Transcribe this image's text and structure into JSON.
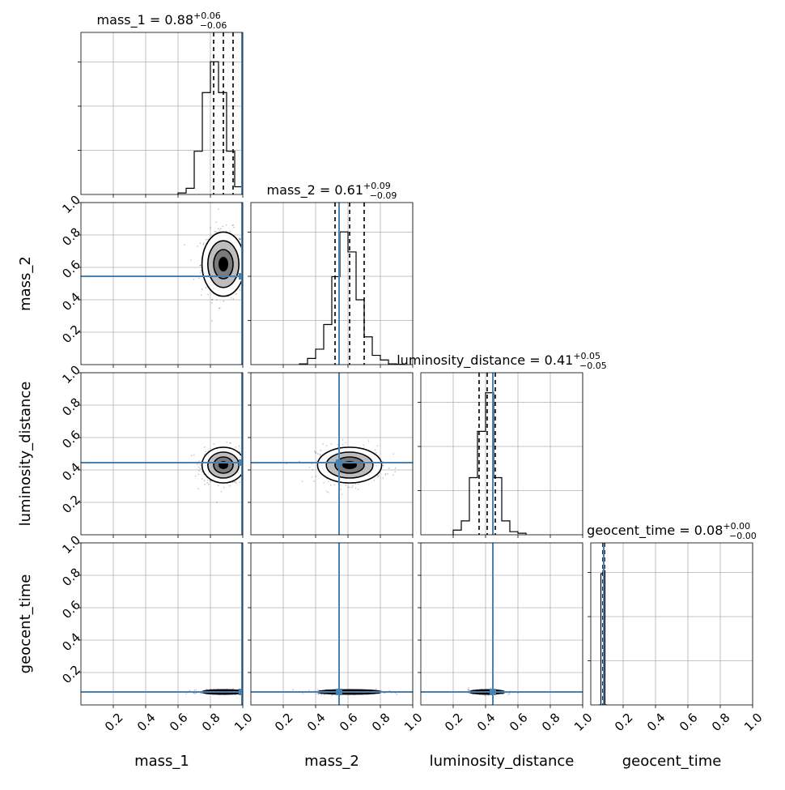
{
  "chart_data": {
    "type": "corner",
    "parameters": [
      "mass_1",
      "mass_2",
      "luminosity_distance",
      "geocent_time"
    ],
    "axis_labels": [
      "mass_1",
      "mass_2",
      "luminosity_distance",
      "geocent_time"
    ],
    "xlim": [
      0,
      1
    ],
    "ylim": [
      0,
      1
    ],
    "x_tick_labels": [
      "0.2",
      "0.4",
      "0.6",
      "0.8",
      "1.0"
    ],
    "y_tick_labels": [
      "0.2",
      "0.4",
      "0.6",
      "0.8",
      "1.0"
    ],
    "grid": true,
    "titles": [
      {
        "name": "mass_1",
        "median": "0.88",
        "plus": "+0.06",
        "minus": "−0.06"
      },
      {
        "name": "mass_2",
        "median": "0.61",
        "plus": "+0.09",
        "minus": "−0.09"
      },
      {
        "name": "luminosity_distance",
        "median": "0.41",
        "plus": "+0.05",
        "minus": "−0.05"
      },
      {
        "name": "geocent_time",
        "median": "0.08",
        "plus": "+0.00",
        "minus": "−0.00"
      }
    ],
    "quantiles": [
      [
        0.82,
        0.88,
        0.94
      ],
      [
        0.52,
        0.61,
        0.7
      ],
      [
        0.36,
        0.41,
        0.46
      ],
      [
        0.075,
        0.08,
        0.085
      ]
    ],
    "truths": [
      0.995,
      0.545,
      0.445,
      0.08
    ],
    "truth_color": "#4682b4",
    "histograms": [
      {
        "range": [
          0.6,
          1.0
        ],
        "counts": [
          0.01,
          0.04,
          0.28,
          0.66,
          0.86,
          0.66,
          0.28,
          0.05
        ]
      },
      {
        "range": [
          0.3,
          0.95
        ],
        "counts": [
          0.005,
          0.04,
          0.1,
          0.26,
          0.57,
          0.86,
          0.73,
          0.42,
          0.18,
          0.06,
          0.03,
          0.005,
          0.002
        ]
      },
      {
        "range": [
          0.2,
          0.65
        ],
        "counts": [
          0.03,
          0.09,
          0.37,
          0.67,
          0.92,
          0.37,
          0.09,
          0.02,
          0.01
        ]
      },
      {
        "range": [
          0.05,
          0.1
        ],
        "counts": [
          0.0,
          0.85,
          0.87,
          0.0
        ]
      }
    ],
    "marginal_ymax": [
      1.05,
      1.05,
      1.05,
      1.05
    ],
    "posterior_2d": [
      {
        "x": "mass_1",
        "y": "mass_2",
        "cx": 0.88,
        "cy": 0.62,
        "sx": 0.06,
        "sy": 0.09
      },
      {
        "x": "mass_1",
        "y": "luminosity_distance",
        "cx": 0.88,
        "cy": 0.43,
        "sx": 0.06,
        "sy": 0.05
      },
      {
        "x": "mass_2",
        "y": "luminosity_distance",
        "cx": 0.61,
        "cy": 0.43,
        "sx": 0.09,
        "sy": 0.05
      },
      {
        "x": "mass_1",
        "y": "geocent_time",
        "cx": 0.88,
        "cy": 0.08,
        "sx": 0.06,
        "sy": 0.006
      },
      {
        "x": "mass_2",
        "y": "geocent_time",
        "cx": 0.61,
        "cy": 0.08,
        "sx": 0.09,
        "sy": 0.006
      },
      {
        "x": "luminosity_distance",
        "y": "geocent_time",
        "cx": 0.41,
        "cy": 0.08,
        "sx": 0.05,
        "sy": 0.006
      }
    ]
  }
}
